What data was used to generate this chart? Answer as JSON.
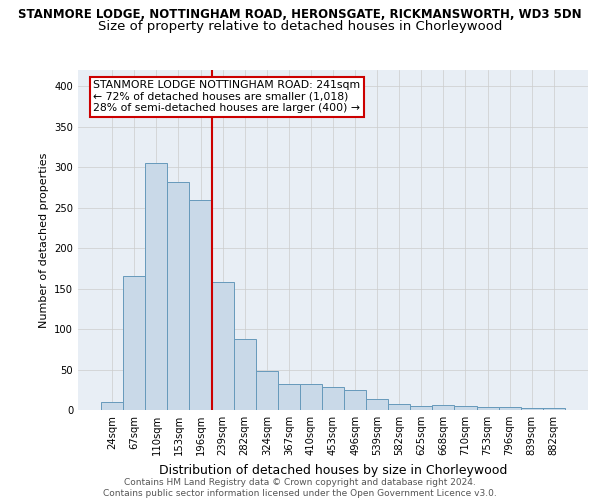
{
  "title_line1": "STANMORE LODGE, NOTTINGHAM ROAD, HERONSGATE, RICKMANSWORTH, WD3 5DN",
  "title_line2": "Size of property relative to detached houses in Chorleywood",
  "xlabel": "Distribution of detached houses by size in Chorleywood",
  "ylabel": "Number of detached properties",
  "categories": [
    "24sqm",
    "67sqm",
    "110sqm",
    "153sqm",
    "196sqm",
    "239sqm",
    "282sqm",
    "324sqm",
    "367sqm",
    "410sqm",
    "453sqm",
    "496sqm",
    "539sqm",
    "582sqm",
    "625sqm",
    "668sqm",
    "710sqm",
    "753sqm",
    "796sqm",
    "839sqm",
    "882sqm"
  ],
  "values": [
    10,
    165,
    305,
    282,
    260,
    158,
    88,
    48,
    32,
    32,
    29,
    25,
    14,
    8,
    5,
    6,
    5,
    4,
    4,
    3,
    3
  ],
  "bar_color": "#c9d9e8",
  "bar_edge_color": "#6699bb",
  "vline_x": 4.5,
  "annotation_text": "STANMORE LODGE NOTTINGHAM ROAD: 241sqm\n← 72% of detached houses are smaller (1,018)\n28% of semi-detached houses are larger (400) →",
  "annotation_box_color": "white",
  "annotation_box_edge": "#cc0000",
  "vline_color": "#cc0000",
  "ylim": [
    0,
    420
  ],
  "yticks": [
    0,
    50,
    100,
    150,
    200,
    250,
    300,
    350,
    400
  ],
  "grid_color": "#cccccc",
  "bg_color": "#e8eef5",
  "footer_line1": "Contains HM Land Registry data © Crown copyright and database right 2024.",
  "footer_line2": "Contains public sector information licensed under the Open Government Licence v3.0.",
  "title1_fontsize": 8.5,
  "title2_fontsize": 9.5,
  "annotation_fontsize": 7.8,
  "ylabel_fontsize": 8.0,
  "xlabel_fontsize": 9.0,
  "tick_fontsize": 7.2,
  "footer_fontsize": 6.5
}
